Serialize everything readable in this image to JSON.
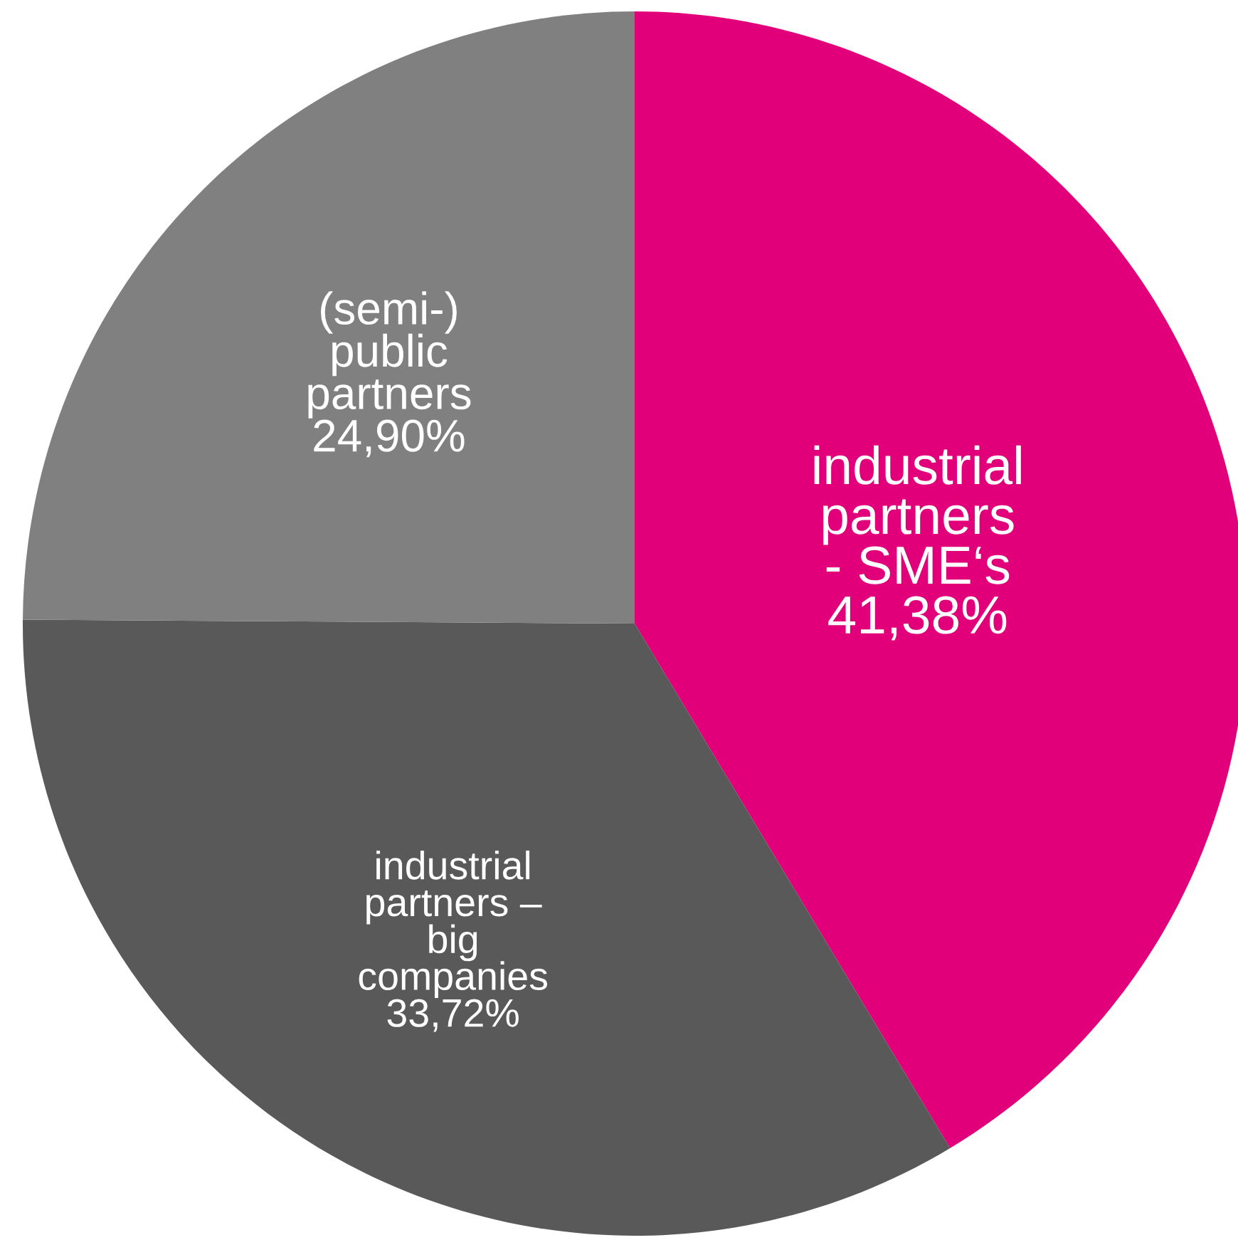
{
  "chart_data": {
    "type": "pie",
    "categories": [
      "industrial\npartners\n- SME‘s",
      "industrial\npartners –\nbig\ncompanies",
      "(semi-)\npublic\npartners"
    ],
    "values": [
      41.38,
      33.72,
      24.9
    ],
    "value_labels": [
      "41,38%",
      "33,72%",
      "24,90%"
    ],
    "colors": [
      "#e2007a",
      "#595959",
      "#808080"
    ],
    "legend": false
  }
}
